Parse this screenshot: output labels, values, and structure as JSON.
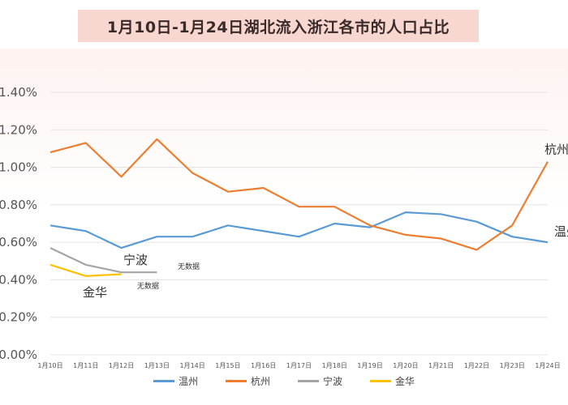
{
  "chart_data": {
    "type": "line",
    "title": "1月10日-1月24日湖北流入浙江各市的人口占比",
    "categories": [
      "1月10日",
      "1月11日",
      "1月12日",
      "1月13日",
      "1月14日",
      "1月15日",
      "1月16日",
      "1月17日",
      "1月18日",
      "1月19日",
      "1月20日",
      "1月21日",
      "1月22日",
      "1月23日",
      "1月24日"
    ],
    "y_tick_labels": [
      "0.00%",
      "0.20%",
      "0.40%",
      "0.60%",
      "0.80%",
      "1.00%",
      "1.20%",
      "1.40%"
    ],
    "ylim": [
      0,
      1.4
    ],
    "grid": true,
    "legend_position": "bottom",
    "series": [
      {
        "name": "温州",
        "color": "#5b9bd5",
        "values": [
          0.69,
          0.66,
          0.57,
          0.63,
          0.63,
          0.69,
          0.66,
          0.63,
          0.7,
          0.68,
          0.76,
          0.75,
          0.71,
          0.63,
          0.6
        ]
      },
      {
        "name": "杭州",
        "color": "#ed7d31",
        "values": [
          1.08,
          1.13,
          0.95,
          1.15,
          0.97,
          0.87,
          0.89,
          0.79,
          0.79,
          0.69,
          0.64,
          0.62,
          0.56,
          0.69,
          1.03
        ]
      },
      {
        "name": "宁波",
        "color": "#a5a5a5",
        "values": [
          0.57,
          0.48,
          0.44,
          0.44,
          null,
          null,
          null,
          null,
          null,
          null,
          null,
          null,
          null,
          null,
          null
        ]
      },
      {
        "name": "金华",
        "color": "#ffc000",
        "values": [
          0.48,
          0.42,
          0.43,
          null,
          null,
          null,
          null,
          null,
          null,
          null,
          null,
          null,
          null,
          null,
          null
        ]
      }
    ],
    "annotations": {
      "hangzhou_end": "杭州",
      "wenzhou_end": "温州",
      "ningbo": "宁波",
      "jinhua": "金华",
      "no_data_ningbo": "无数据",
      "no_data_jinhua": "无数据"
    }
  }
}
